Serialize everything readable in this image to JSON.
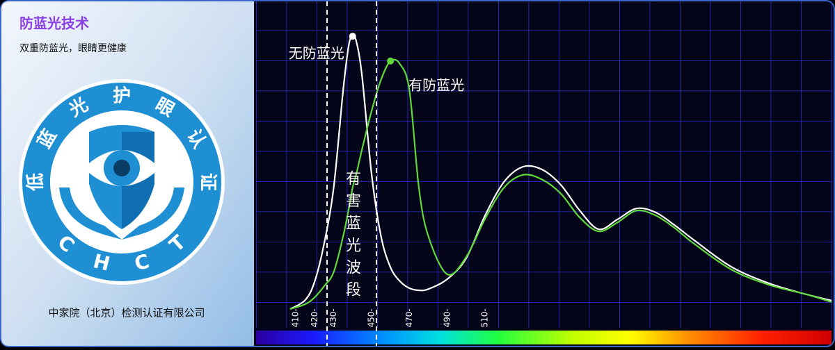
{
  "panel": {
    "title": "防蓝光技术",
    "subtitle": "双重防蓝光，眼睛更健康",
    "logo": {
      "ring_chars": [
        "低",
        "蓝",
        "光",
        "护",
        "眼",
        "认",
        "证"
      ],
      "letters": [
        "C",
        "H",
        "C",
        "T"
      ]
    },
    "company": "中家院（北京）检测认证有限公司"
  },
  "chart_data": {
    "type": "line",
    "x": [
      407,
      415,
      420,
      425,
      430,
      435,
      438,
      440,
      442,
      445,
      450,
      455,
      460,
      465,
      470,
      475,
      480,
      490,
      500,
      510,
      520,
      530,
      540,
      550,
      560,
      570,
      580,
      590,
      600,
      610,
      620,
      640,
      660,
      680,
      693
    ],
    "series": [
      {
        "name": "无防蓝光",
        "color": "#ffffff",
        "values": [
          0,
          3,
          9.2,
          21.8,
          40.2,
          72.4,
          87.4,
          90.3,
          88.5,
          77,
          44.8,
          24.1,
          13.8,
          9.2,
          6.9,
          6.2,
          6.6,
          9.9,
          16.8,
          31.0,
          42.1,
          47.1,
          46.2,
          41.1,
          32.6,
          26.4,
          29.7,
          33.3,
          32.0,
          27.8,
          23.0,
          14.0,
          8.5,
          4.8,
          2.8
        ]
      },
      {
        "name": "有防蓝光",
        "color": "#5fd93a",
        "values": [
          0,
          1.6,
          3.9,
          7.6,
          12.2,
          24.1,
          33.3,
          40.2,
          44.8,
          52.9,
          65.5,
          75.9,
          82.1,
          81.1,
          72.4,
          40.2,
          24.1,
          11.5,
          17.2,
          29.9,
          40.2,
          44.4,
          42.9,
          38.2,
          30.3,
          25.7,
          28.7,
          32.6,
          31.0,
          26.9,
          21.8,
          13.1,
          8.0,
          4.8,
          2.3
        ]
      }
    ],
    "xlim": [
      389,
      693
    ],
    "xticks": [
      410,
      420,
      430,
      450,
      470,
      490,
      510
    ],
    "ylim": [
      0,
      100
    ],
    "band": {
      "label": "有害蓝光波段",
      "range": [
        426.5,
        452.6
      ]
    },
    "grid": true
  }
}
